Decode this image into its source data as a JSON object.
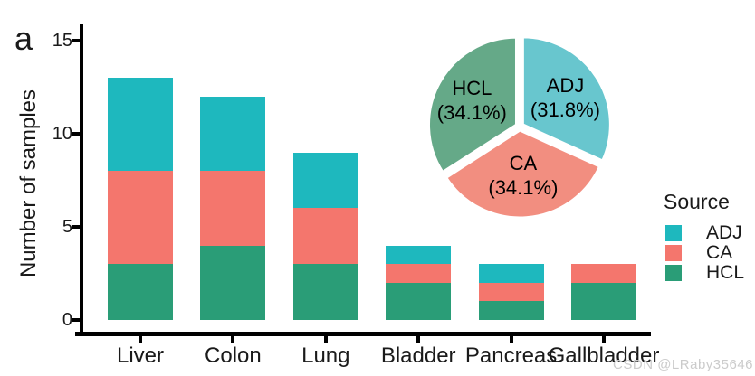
{
  "panel_label": "a",
  "watermark": "CSDN @LRaby35646",
  "colors": {
    "accent_teal": "#1EB8BE",
    "accent_salmon": "#F4766D",
    "accent_green": "#2A9D77",
    "pie_teal": "#68C6CE",
    "pie_salmon": "#F28E80",
    "pie_green": "#65A988",
    "axis": "#000000",
    "text": "#1A1A1A",
    "watermark": "#CBCBCB"
  },
  "chart_data": [
    {
      "type": "bar",
      "stacked": true,
      "title": "",
      "xlabel": "",
      "ylabel": "Number of samples",
      "categories": [
        "Liver",
        "Colon",
        "Lung",
        "Bladder",
        "Pancreas",
        "Gallbladder"
      ],
      "series": [
        {
          "name": "HCL",
          "color_key": "accent_green",
          "values": [
            3,
            4,
            3,
            2,
            1,
            2
          ]
        },
        {
          "name": "CA",
          "color_key": "accent_salmon",
          "values": [
            5,
            4,
            3,
            1,
            1,
            1
          ]
        },
        {
          "name": "ADJ",
          "color_key": "accent_teal",
          "values": [
            5,
            4,
            3,
            1,
            1,
            0
          ]
        }
      ],
      "totals": [
        13,
        12,
        9,
        4,
        3,
        3
      ],
      "stack_order": "series listed bottom-to-top",
      "ylim": [
        0,
        15
      ],
      "yticks": [
        0,
        5,
        10,
        15
      ],
      "grid": false,
      "legend_position": "right"
    },
    {
      "type": "pie",
      "direction": "clockwise",
      "start_angle_deg": 0,
      "slices": [
        {
          "name": "ADJ",
          "percent": 31.8,
          "label_line1": "ADJ",
          "label_line2": "(31.8%)",
          "color_key": "pie_teal"
        },
        {
          "name": "CA",
          "percent": 34.1,
          "label_line1": "CA",
          "label_line2": "(34.1%)",
          "color_key": "pie_salmon"
        },
        {
          "name": "HCL",
          "percent": 34.1,
          "label_line1": "HCL",
          "label_line2": "(34.1%)",
          "color_key": "pie_green"
        }
      ]
    }
  ],
  "legend": {
    "title": "Source",
    "items": [
      {
        "label": "ADJ",
        "color_key": "accent_teal"
      },
      {
        "label": "CA",
        "color_key": "accent_salmon"
      },
      {
        "label": "HCL",
        "color_key": "accent_green"
      }
    ]
  }
}
